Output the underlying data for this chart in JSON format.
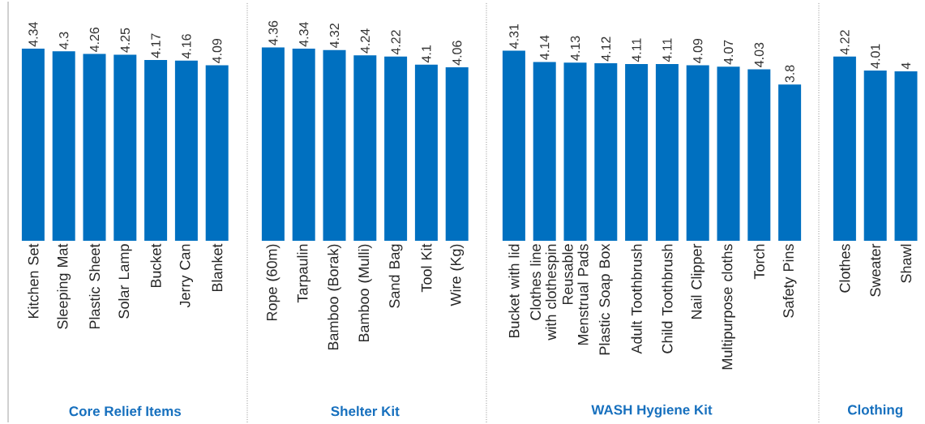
{
  "chart_data": [
    {
      "type": "bar",
      "xlabel": "Core Relief Items",
      "categories": [
        "Kitchen Set",
        "Sleeping Mat",
        "Plastic Sheet",
        "Solar Lamp",
        "Bucket",
        "Jerry Can",
        "Blanket"
      ],
      "values": [
        4.34,
        4.3,
        4.26,
        4.25,
        4.17,
        4.16,
        4.09
      ],
      "color": "#0070c0",
      "ylim": [
        1.45,
        4.34
      ],
      "data_labels": true,
      "tick_labels": "x"
    },
    {
      "type": "bar",
      "xlabel": "Shelter Kit",
      "categories": [
        "Rope (60m)",
        "Tarpaulin",
        "Bamboo (Borak)",
        "Bamboo (Mulli)",
        "Sand Bag",
        "Tool Kit",
        "Wire (Kg)"
      ],
      "values": [
        4.36,
        4.34,
        4.32,
        4.24,
        4.22,
        4.1,
        4.06
      ],
      "color": "#0070c0",
      "ylim": [
        1.45,
        4.36
      ],
      "data_labels": true,
      "tick_labels": "x"
    },
    {
      "type": "bar",
      "xlabel": "WASH Hygiene Kit",
      "categories": [
        "Bucket with lid",
        "Clothes line with clothespin",
        "Reusable Menstrual Pads",
        "Plastic Soap Box",
        "Adult Toothbrush",
        "Child Toothbrush",
        "Nail Clipper",
        "Multipurpose cloths",
        "Torch",
        "Safety Pins"
      ],
      "values": [
        4.31,
        4.14,
        4.13,
        4.12,
        4.11,
        4.11,
        4.09,
        4.07,
        4.03,
        3.8
      ],
      "color": "#0070c0",
      "ylim": [
        1.45,
        4.31
      ],
      "data_labels": true,
      "tick_labels": "x"
    },
    {
      "type": "bar",
      "xlabel": "Clothing",
      "categories": [
        "Clothes",
        "Sweater",
        "Shawl"
      ],
      "values": [
        4.22,
        4.01,
        4
      ],
      "color": "#0070c0",
      "ylim": [
        1.45,
        4.22
      ],
      "data_labels": true,
      "tick_labels": "x"
    }
  ]
}
